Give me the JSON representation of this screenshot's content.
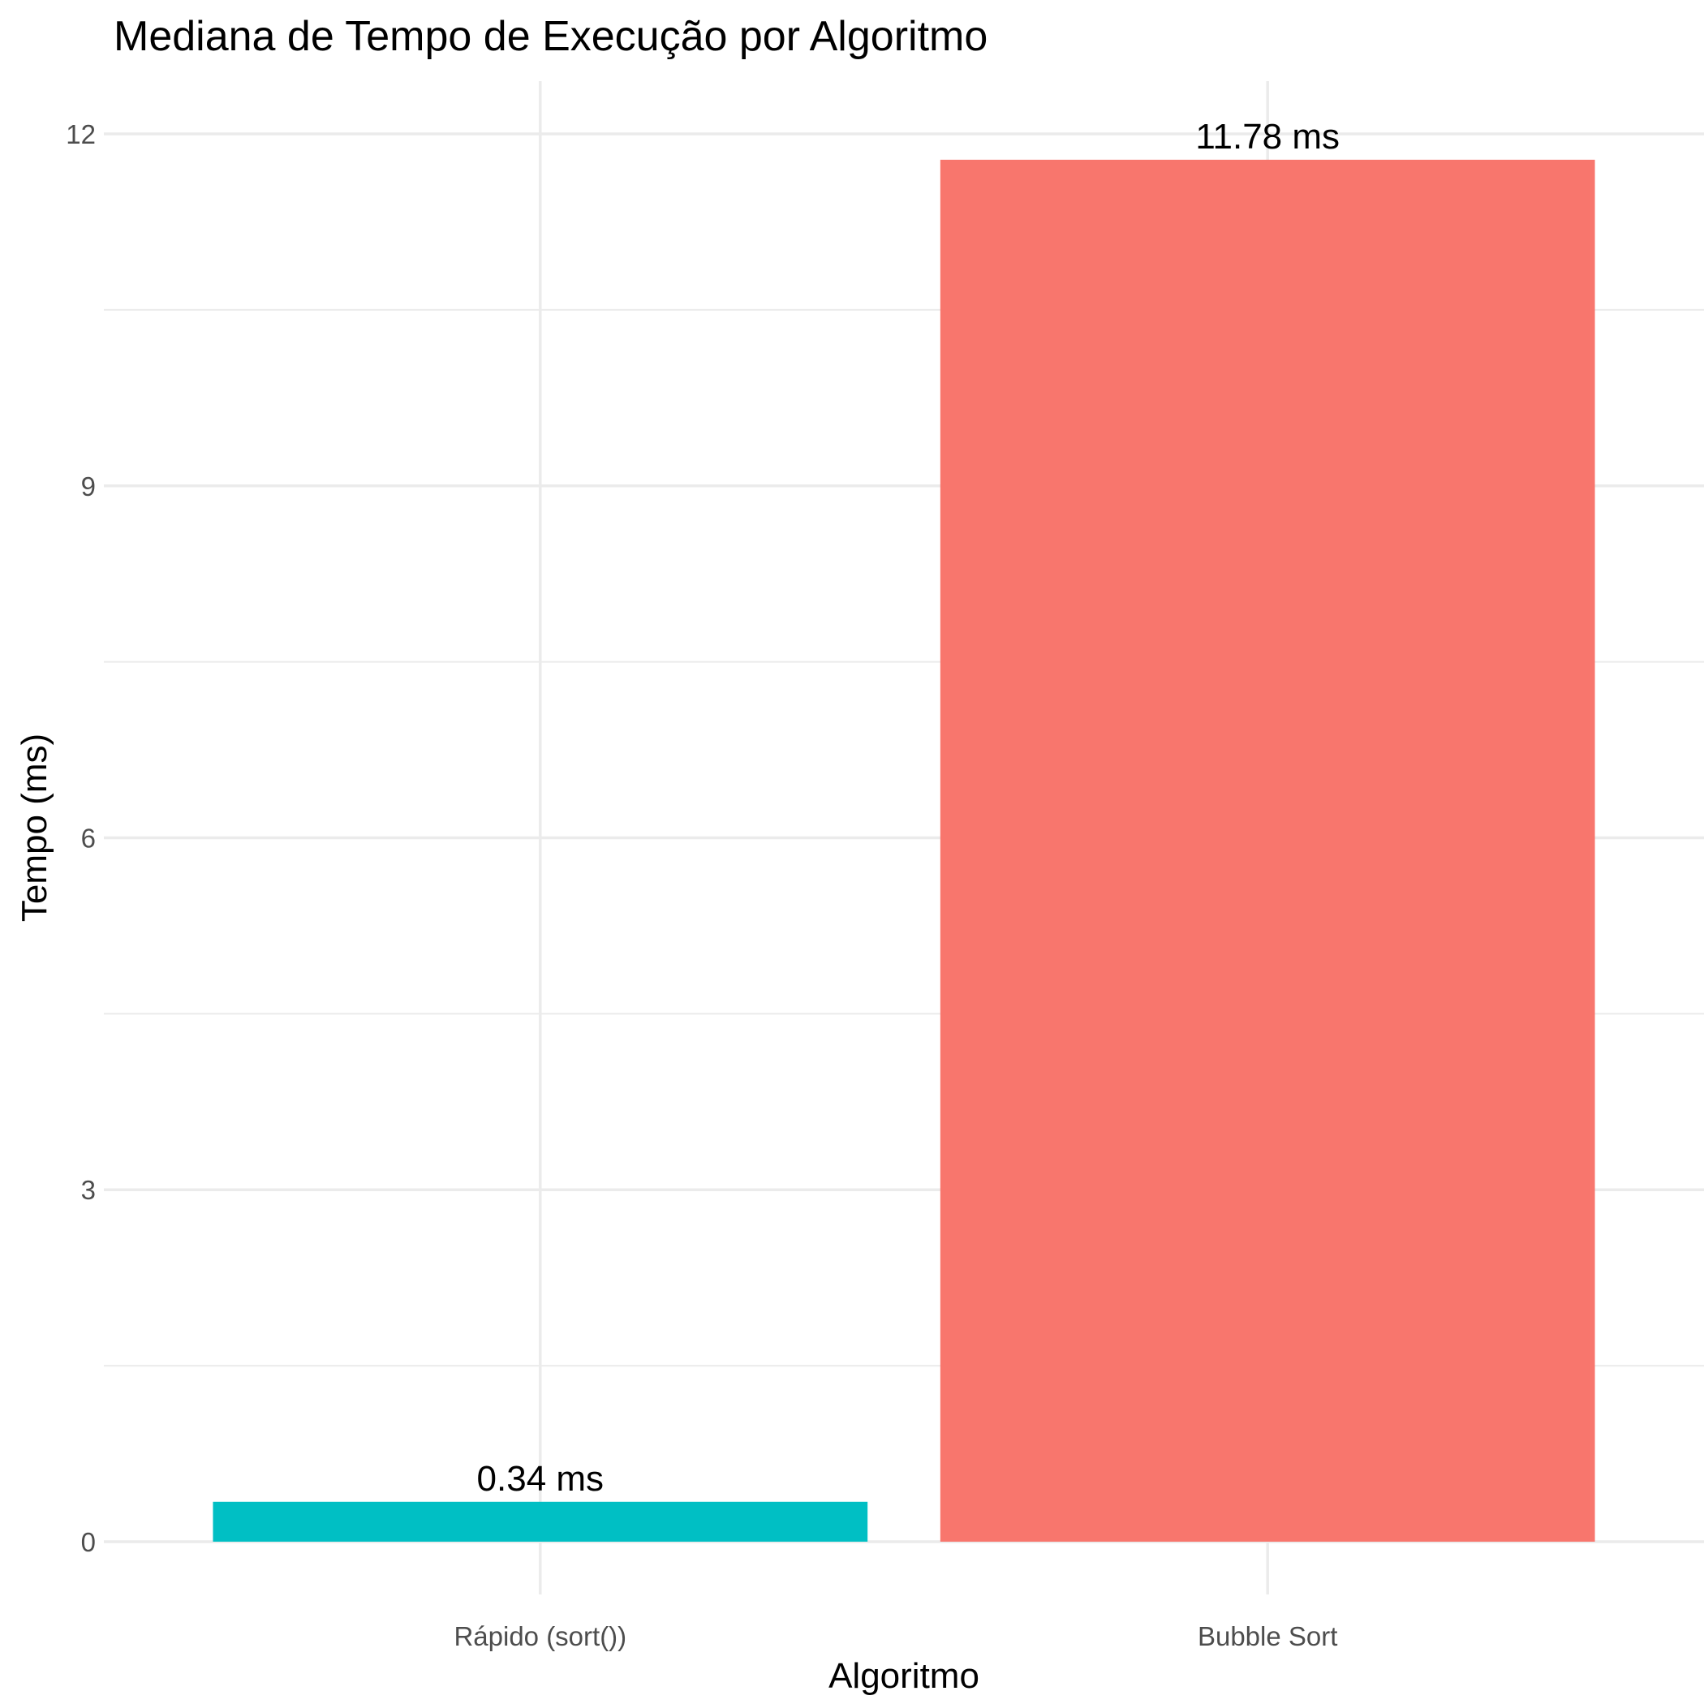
{
  "chart_data": {
    "type": "bar",
    "title": "Mediana de Tempo de Execução por Algoritmo",
    "xlabel": "Algoritmo",
    "ylabel": "Tempo (ms)",
    "categories": [
      "Rápido (sort())",
      "Bubble Sort"
    ],
    "values": [
      0.34,
      11.78
    ],
    "data_labels": [
      "0.34 ms",
      "11.78 ms"
    ],
    "colors": [
      "#00BFC4",
      "#F8766D"
    ],
    "ylim": [
      -0.45,
      12.45
    ],
    "y_ticks": [
      0,
      3,
      6,
      9,
      12
    ],
    "y_tick_labels": [
      "0",
      "3",
      "6",
      "9",
      "12"
    ],
    "grid": true,
    "legend": "none"
  }
}
